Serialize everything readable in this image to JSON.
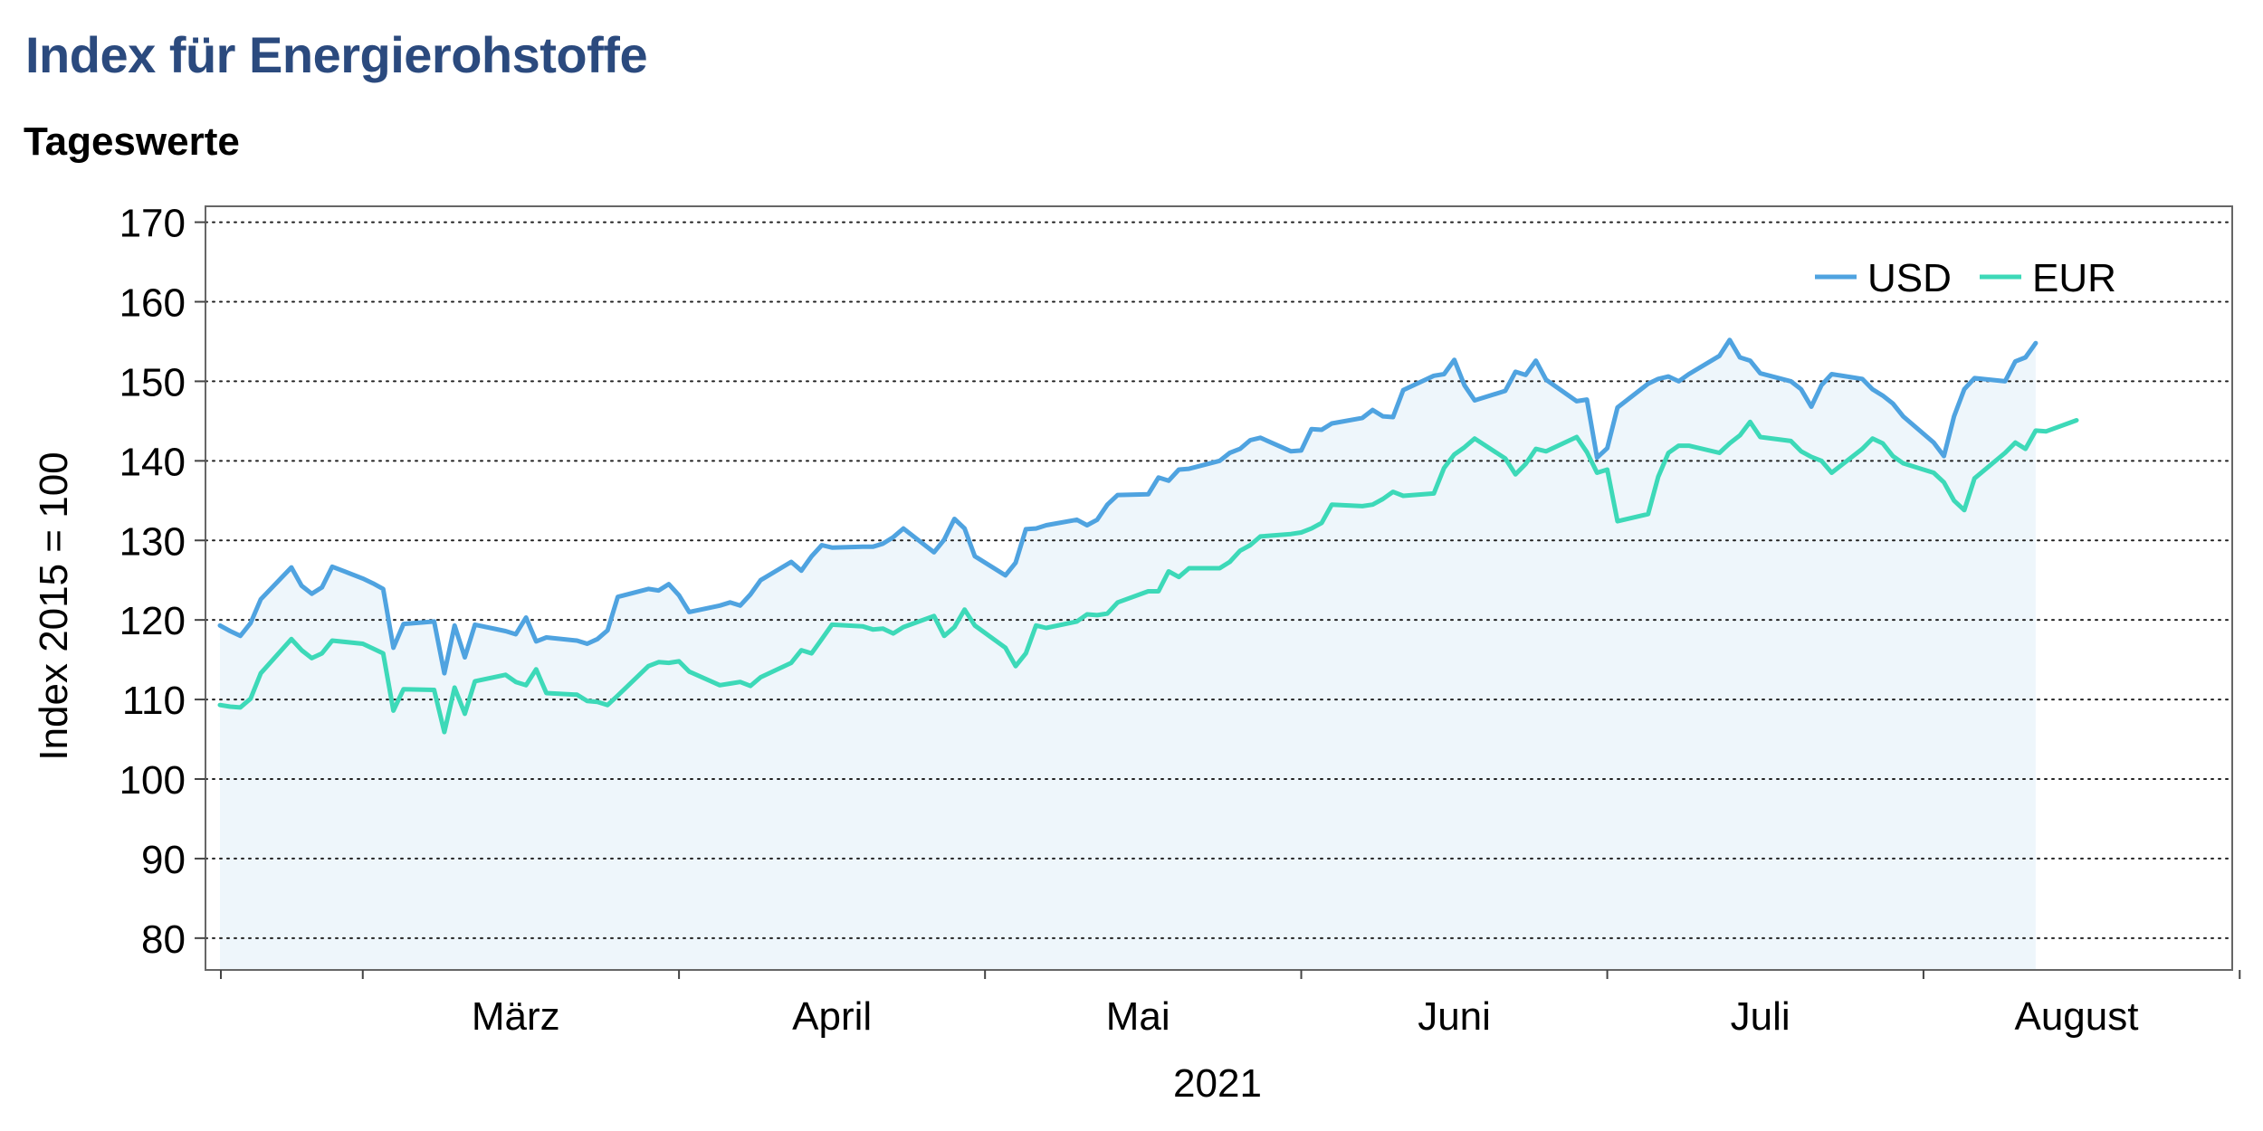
{
  "title": "Index für Energierohstoffe",
  "subtitle": "Tageswerte",
  "colors": {
    "usd": "#4fa3e0",
    "eur": "#3dd9b8",
    "fill": "#eef6fb",
    "title": "#2b4a7e"
  },
  "chart_data": {
    "type": "line",
    "title": "Index für Energierohstoffe",
    "subtitle": "Tageswerte",
    "xlabel": "2021",
    "ylabel": "Index 2015 = 100",
    "ylim": [
      76,
      172
    ],
    "yticks": [
      80,
      90,
      100,
      110,
      120,
      130,
      140,
      150,
      160,
      170
    ],
    "grid": true,
    "legend_position": "top-right",
    "x_start_date": "2021-02-15",
    "x_end_date": "2021-08-31",
    "month_labels": [
      {
        "label": "März",
        "date": "2021-03-16"
      },
      {
        "label": "April",
        "date": "2021-04-16"
      },
      {
        "label": "Mai",
        "date": "2021-05-16"
      },
      {
        "label": "Juni",
        "date": "2021-06-16"
      },
      {
        "label": "Juli",
        "date": "2021-07-16"
      },
      {
        "label": "August",
        "date": "2021-08-16"
      }
    ],
    "month_ticks": [
      "2021-03-01",
      "2021-04-01",
      "2021-05-01",
      "2021-06-01",
      "2021-07-01",
      "2021-08-01",
      "2021-09-01"
    ],
    "series": [
      {
        "name": "USD",
        "points": [
          [
            "2021-02-15",
            119.3
          ],
          [
            "2021-02-16",
            118.6
          ],
          [
            "2021-02-17",
            118.0
          ],
          [
            "2021-02-18",
            119.6
          ],
          [
            "2021-02-19",
            122.6
          ],
          [
            "2021-02-22",
            126.6
          ],
          [
            "2021-02-23",
            124.3
          ],
          [
            "2021-02-24",
            123.3
          ],
          [
            "2021-02-25",
            124.1
          ],
          [
            "2021-02-26",
            126.7
          ],
          [
            "2021-03-01",
            125.2
          ],
          [
            "2021-03-02",
            124.6
          ],
          [
            "2021-03-03",
            123.9
          ],
          [
            "2021-03-04",
            116.5
          ],
          [
            "2021-03-05",
            119.5
          ],
          [
            "2021-03-08",
            119.8
          ],
          [
            "2021-03-09",
            113.3
          ],
          [
            "2021-03-10",
            119.3
          ],
          [
            "2021-03-11",
            115.3
          ],
          [
            "2021-03-12",
            119.4
          ],
          [
            "2021-03-15",
            118.6
          ],
          [
            "2021-03-16",
            118.2
          ],
          [
            "2021-03-17",
            120.3
          ],
          [
            "2021-03-18",
            117.3
          ],
          [
            "2021-03-19",
            117.8
          ],
          [
            "2021-03-22",
            117.4
          ],
          [
            "2021-03-23",
            117.0
          ],
          [
            "2021-03-24",
            117.6
          ],
          [
            "2021-03-25",
            118.7
          ],
          [
            "2021-03-26",
            122.9
          ],
          [
            "2021-03-29",
            123.9
          ],
          [
            "2021-03-30",
            123.7
          ],
          [
            "2021-03-31",
            124.5
          ],
          [
            "2021-04-01",
            123.1
          ],
          [
            "2021-04-02",
            121.0
          ],
          [
            "2021-04-05",
            121.8
          ],
          [
            "2021-04-06",
            122.2
          ],
          [
            "2021-04-07",
            121.8
          ],
          [
            "2021-04-08",
            123.2
          ],
          [
            "2021-04-09",
            125.0
          ],
          [
            "2021-04-12",
            127.3
          ],
          [
            "2021-04-13",
            126.2
          ],
          [
            "2021-04-14",
            128.0
          ],
          [
            "2021-04-15",
            129.4
          ],
          [
            "2021-04-16",
            129.1
          ],
          [
            "2021-04-19",
            129.2
          ],
          [
            "2021-04-20",
            129.2
          ],
          [
            "2021-04-21",
            129.6
          ],
          [
            "2021-04-22",
            130.4
          ],
          [
            "2021-04-23",
            131.5
          ],
          [
            "2021-04-26",
            128.5
          ],
          [
            "2021-04-27",
            130.1
          ],
          [
            "2021-04-28",
            132.7
          ],
          [
            "2021-04-29",
            131.5
          ],
          [
            "2021-04-30",
            128.0
          ],
          [
            "2021-05-03",
            125.6
          ],
          [
            "2021-05-04",
            127.2
          ],
          [
            "2021-05-05",
            131.4
          ],
          [
            "2021-05-06",
            131.5
          ],
          [
            "2021-05-07",
            131.9
          ],
          [
            "2021-05-10",
            132.6
          ],
          [
            "2021-05-11",
            131.9
          ],
          [
            "2021-05-12",
            132.6
          ],
          [
            "2021-05-13",
            134.5
          ],
          [
            "2021-05-14",
            135.7
          ],
          [
            "2021-05-17",
            135.8
          ],
          [
            "2021-05-18",
            137.9
          ],
          [
            "2021-05-19",
            137.5
          ],
          [
            "2021-05-20",
            138.9
          ],
          [
            "2021-05-21",
            139.0
          ],
          [
            "2021-05-24",
            140.0
          ],
          [
            "2021-05-25",
            141.0
          ],
          [
            "2021-05-26",
            141.5
          ],
          [
            "2021-05-27",
            142.6
          ],
          [
            "2021-05-28",
            142.9
          ],
          [
            "2021-05-31",
            141.2
          ],
          [
            "2021-06-01",
            141.3
          ],
          [
            "2021-06-02",
            144.0
          ],
          [
            "2021-06-03",
            143.9
          ],
          [
            "2021-06-04",
            144.7
          ],
          [
            "2021-06-07",
            145.4
          ],
          [
            "2021-06-08",
            146.4
          ],
          [
            "2021-06-09",
            145.6
          ],
          [
            "2021-06-10",
            145.5
          ],
          [
            "2021-06-11",
            148.9
          ],
          [
            "2021-06-14",
            150.7
          ],
          [
            "2021-06-15",
            150.9
          ],
          [
            "2021-06-16",
            152.7
          ],
          [
            "2021-06-17",
            149.5
          ],
          [
            "2021-06-18",
            147.6
          ],
          [
            "2021-06-21",
            148.8
          ],
          [
            "2021-06-22",
            151.2
          ],
          [
            "2021-06-23",
            150.8
          ],
          [
            "2021-06-24",
            152.6
          ],
          [
            "2021-06-25",
            150.2
          ],
          [
            "2021-06-28",
            147.5
          ],
          [
            "2021-06-29",
            147.7
          ],
          [
            "2021-06-30",
            140.4
          ],
          [
            "2021-07-01",
            141.6
          ],
          [
            "2021-07-02",
            146.7
          ],
          [
            "2021-07-05",
            149.7
          ],
          [
            "2021-07-06",
            150.3
          ],
          [
            "2021-07-07",
            150.6
          ],
          [
            "2021-07-08",
            150.0
          ],
          [
            "2021-07-09",
            150.9
          ],
          [
            "2021-07-12",
            153.2
          ],
          [
            "2021-07-13",
            155.2
          ],
          [
            "2021-07-14",
            153.0
          ],
          [
            "2021-07-15",
            152.6
          ],
          [
            "2021-07-16",
            151.0
          ],
          [
            "2021-07-19",
            150.0
          ],
          [
            "2021-07-20",
            149.0
          ],
          [
            "2021-07-21",
            146.8
          ],
          [
            "2021-07-22",
            149.5
          ],
          [
            "2021-07-23",
            150.9
          ],
          [
            "2021-07-26",
            150.3
          ],
          [
            "2021-07-27",
            149.0
          ],
          [
            "2021-07-28",
            148.2
          ],
          [
            "2021-07-29",
            147.2
          ],
          [
            "2021-07-30",
            145.6
          ],
          [
            "2021-08-02",
            142.3
          ],
          [
            "2021-08-03",
            140.6
          ],
          [
            "2021-08-04",
            145.6
          ],
          [
            "2021-08-05",
            149.0
          ],
          [
            "2021-08-06",
            150.4
          ],
          [
            "2021-08-09",
            150.0
          ],
          [
            "2021-08-10",
            152.5
          ],
          [
            "2021-08-11",
            153.0
          ],
          [
            "2021-08-12",
            154.8
          ]
        ]
      },
      {
        "name": "EUR",
        "points": [
          [
            "2021-02-15",
            109.3
          ],
          [
            "2021-02-16",
            109.1
          ],
          [
            "2021-02-17",
            109.0
          ],
          [
            "2021-02-18",
            110.1
          ],
          [
            "2021-02-19",
            113.3
          ],
          [
            "2021-02-22",
            117.6
          ],
          [
            "2021-02-23",
            116.2
          ],
          [
            "2021-02-24",
            115.2
          ],
          [
            "2021-02-25",
            115.8
          ],
          [
            "2021-02-26",
            117.4
          ],
          [
            "2021-03-01",
            117.0
          ],
          [
            "2021-03-02",
            116.4
          ],
          [
            "2021-03-03",
            115.8
          ],
          [
            "2021-03-04",
            108.6
          ],
          [
            "2021-03-05",
            111.3
          ],
          [
            "2021-03-08",
            111.2
          ],
          [
            "2021-03-09",
            105.9
          ],
          [
            "2021-03-10",
            111.5
          ],
          [
            "2021-03-11",
            108.2
          ],
          [
            "2021-03-12",
            112.3
          ],
          [
            "2021-03-15",
            113.1
          ],
          [
            "2021-03-16",
            112.2
          ],
          [
            "2021-03-17",
            111.8
          ],
          [
            "2021-03-18",
            113.8
          ],
          [
            "2021-03-19",
            110.8
          ],
          [
            "2021-03-22",
            110.6
          ],
          [
            "2021-03-23",
            109.8
          ],
          [
            "2021-03-24",
            109.7
          ],
          [
            "2021-03-25",
            109.3
          ],
          [
            "2021-03-26",
            110.5
          ],
          [
            "2021-03-29",
            114.2
          ],
          [
            "2021-03-30",
            114.7
          ],
          [
            "2021-03-31",
            114.6
          ],
          [
            "2021-04-01",
            114.8
          ],
          [
            "2021-04-02",
            113.5
          ],
          [
            "2021-04-05",
            111.8
          ],
          [
            "2021-04-06",
            112.0
          ],
          [
            "2021-04-07",
            112.2
          ],
          [
            "2021-04-08",
            111.7
          ],
          [
            "2021-04-09",
            112.8
          ],
          [
            "2021-04-12",
            114.6
          ],
          [
            "2021-04-13",
            116.2
          ],
          [
            "2021-04-14",
            115.8
          ],
          [
            "2021-04-15",
            117.6
          ],
          [
            "2021-04-16",
            119.4
          ],
          [
            "2021-04-19",
            119.2
          ],
          [
            "2021-04-20",
            118.8
          ],
          [
            "2021-04-21",
            118.9
          ],
          [
            "2021-04-22",
            118.3
          ],
          [
            "2021-04-23",
            119.1
          ],
          [
            "2021-04-26",
            120.5
          ],
          [
            "2021-04-27",
            118.0
          ],
          [
            "2021-04-28",
            119.1
          ],
          [
            "2021-04-29",
            121.3
          ],
          [
            "2021-04-30",
            119.3
          ],
          [
            "2021-05-03",
            116.5
          ],
          [
            "2021-05-04",
            114.2
          ],
          [
            "2021-05-05",
            115.8
          ],
          [
            "2021-05-06",
            119.3
          ],
          [
            "2021-05-07",
            119.0
          ],
          [
            "2021-05-10",
            119.8
          ],
          [
            "2021-05-11",
            120.7
          ],
          [
            "2021-05-12",
            120.6
          ],
          [
            "2021-05-13",
            120.8
          ],
          [
            "2021-05-14",
            122.2
          ],
          [
            "2021-05-17",
            123.6
          ],
          [
            "2021-05-18",
            123.6
          ],
          [
            "2021-05-19",
            126.1
          ],
          [
            "2021-05-20",
            125.4
          ],
          [
            "2021-05-21",
            126.5
          ],
          [
            "2021-05-24",
            126.5
          ],
          [
            "2021-05-25",
            127.3
          ],
          [
            "2021-05-26",
            128.7
          ],
          [
            "2021-05-27",
            129.4
          ],
          [
            "2021-05-28",
            130.5
          ],
          [
            "2021-05-31",
            130.8
          ],
          [
            "2021-06-01",
            131.0
          ],
          [
            "2021-06-02",
            131.5
          ],
          [
            "2021-06-03",
            132.2
          ],
          [
            "2021-06-04",
            134.5
          ],
          [
            "2021-06-07",
            134.3
          ],
          [
            "2021-06-08",
            134.5
          ],
          [
            "2021-06-09",
            135.2
          ],
          [
            "2021-06-10",
            136.1
          ],
          [
            "2021-06-11",
            135.6
          ],
          [
            "2021-06-14",
            135.9
          ],
          [
            "2021-06-15",
            139.1
          ],
          [
            "2021-06-16",
            140.8
          ],
          [
            "2021-06-17",
            141.7
          ],
          [
            "2021-06-18",
            142.8
          ],
          [
            "2021-06-21",
            140.3
          ],
          [
            "2021-06-22",
            138.3
          ],
          [
            "2021-06-23",
            139.6
          ],
          [
            "2021-06-24",
            141.5
          ],
          [
            "2021-06-25",
            141.2
          ],
          [
            "2021-06-28",
            143.0
          ],
          [
            "2021-06-29",
            141.1
          ],
          [
            "2021-06-30",
            138.5
          ],
          [
            "2021-07-01",
            138.9
          ],
          [
            "2021-07-02",
            132.4
          ],
          [
            "2021-07-05",
            133.3
          ],
          [
            "2021-07-06",
            138.0
          ],
          [
            "2021-07-07",
            141.0
          ],
          [
            "2021-07-08",
            141.9
          ],
          [
            "2021-07-09",
            141.9
          ],
          [
            "2021-07-12",
            141.0
          ],
          [
            "2021-07-13",
            142.2
          ],
          [
            "2021-07-14",
            143.2
          ],
          [
            "2021-07-15",
            144.9
          ],
          [
            "2021-07-16",
            143.0
          ],
          [
            "2021-07-19",
            142.5
          ],
          [
            "2021-07-20",
            141.2
          ],
          [
            "2021-07-21",
            140.5
          ],
          [
            "2021-07-22",
            140.0
          ],
          [
            "2021-07-23",
            138.5
          ],
          [
            "2021-07-26",
            141.5
          ],
          [
            "2021-07-27",
            142.8
          ],
          [
            "2021-07-28",
            142.2
          ],
          [
            "2021-07-29",
            140.6
          ],
          [
            "2021-07-30",
            139.7
          ],
          [
            "2021-08-02",
            138.5
          ],
          [
            "2021-08-03",
            137.3
          ],
          [
            "2021-08-04",
            135.0
          ],
          [
            "2021-08-05",
            133.8
          ],
          [
            "2021-08-06",
            137.8
          ],
          [
            "2021-08-09",
            141.0
          ],
          [
            "2021-08-10",
            142.3
          ],
          [
            "2021-08-11",
            141.5
          ],
          [
            "2021-08-12",
            143.8
          ],
          [
            "2021-08-13",
            143.7
          ],
          [
            "2021-08-16",
            145.1
          ]
        ]
      }
    ]
  }
}
